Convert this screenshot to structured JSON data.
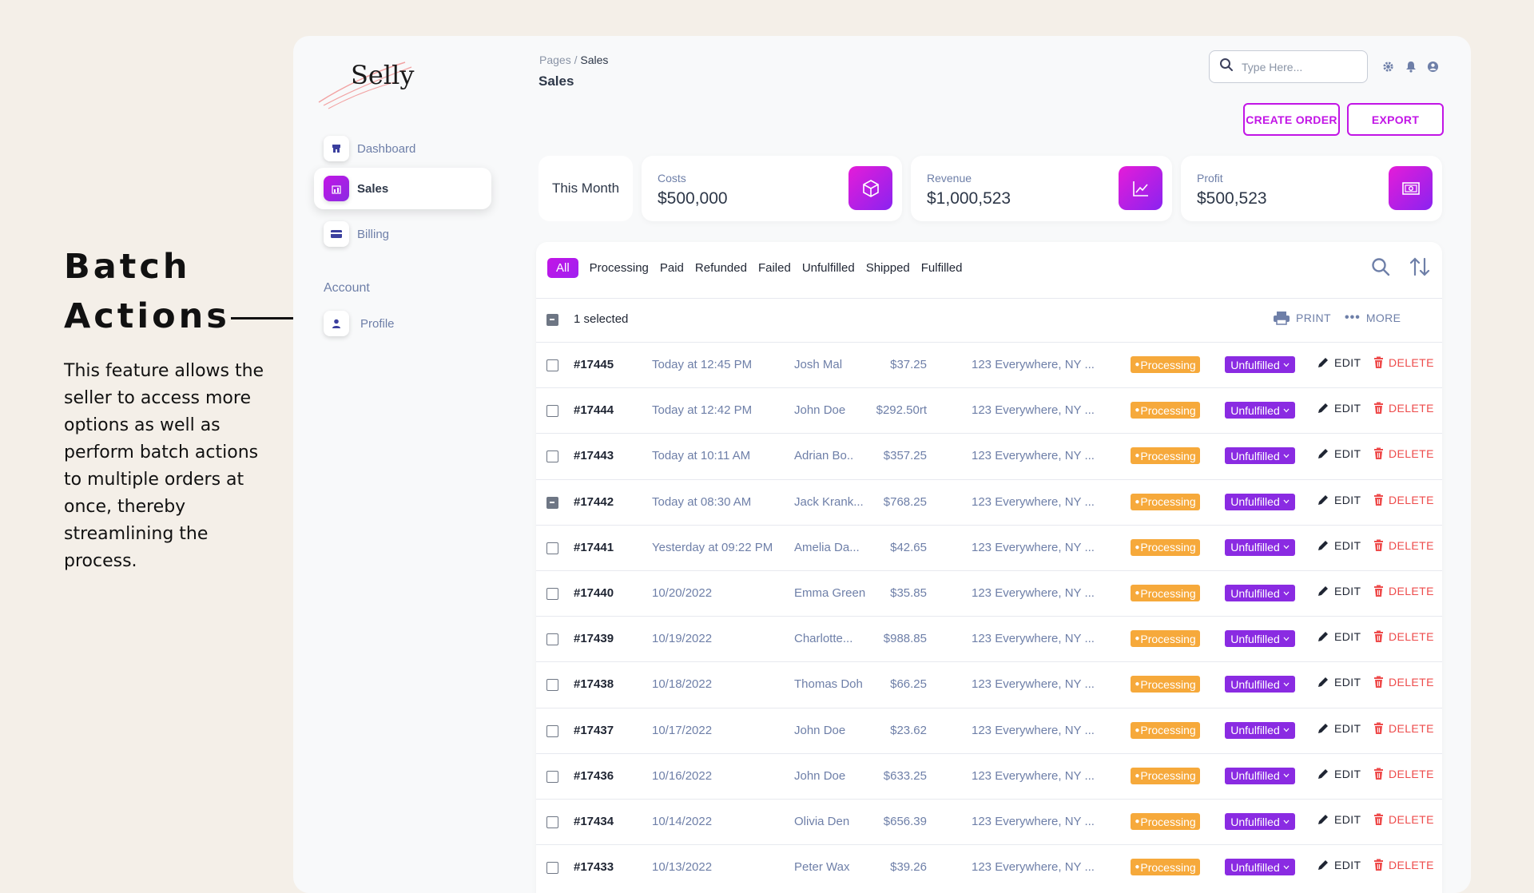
{
  "annotation": {
    "title_line1": "Batch",
    "title_line2": "Actions",
    "description": "This feature allows the seller to access more options as well as perform batch actions to multiple orders at once, thereby streamlining the process."
  },
  "brand": {
    "name": "Selly",
    "accent": "#c215e6",
    "accent2": "#8a2be2"
  },
  "sidebar": {
    "items": [
      {
        "label": "Dashboard",
        "icon": "shop-icon"
      },
      {
        "label": "Sales",
        "icon": "chart-bar-icon"
      },
      {
        "label": "Billing",
        "icon": "credit-card-icon"
      }
    ],
    "account_heading": "Account",
    "account_items": [
      {
        "label": "Profile",
        "icon": "user-icon"
      }
    ]
  },
  "header": {
    "breadcrumb_parent": "Pages",
    "breadcrumb_sep": " / ",
    "breadcrumb_current": "Sales",
    "title": "Sales",
    "search_placeholder": "Type Here...",
    "create_order": "CREATE ORDER",
    "export": "EXPORT"
  },
  "stats": {
    "period": "This Month",
    "costs_label": "Costs",
    "costs_value": "$500,000",
    "revenue_label": "Revenue",
    "revenue_value": "$1,000,523",
    "profit_label": "Profit",
    "profit_value": "$500,523"
  },
  "filters": [
    "All",
    "Processing",
    "Paid",
    "Refunded",
    "Failed",
    "Unfulfilled",
    "Shipped",
    "Fulfilled"
  ],
  "selection": {
    "text": "1 selected",
    "print": "PRINT",
    "more": "MORE"
  },
  "actions": {
    "edit": "EDIT",
    "delete": "DELETE"
  },
  "orders": [
    {
      "id": "#17445",
      "date": "Today at 12:45 PM",
      "customer": "Josh Mal",
      "amount": "$37.25",
      "address": "123 Everywhere, NY ...",
      "payment": "Processing",
      "fulfillment": "Unfulfilled",
      "checked": false
    },
    {
      "id": "#17444",
      "date": "Today at 12:42 PM",
      "customer": "John Doe",
      "amount": "$292.50rt",
      "address": "123 Everywhere, NY ...",
      "payment": "Processing",
      "fulfillment": "Unfulfilled",
      "checked": false
    },
    {
      "id": "#17443",
      "date": "Today at 10:11 AM",
      "customer": "Adrian Bo..",
      "amount": "$357.25",
      "address": "123 Everywhere, NY ...",
      "payment": "Processing",
      "fulfillment": "Unfulfilled",
      "checked": false
    },
    {
      "id": "#17442",
      "date": "Today at 08:30 AM",
      "customer": "Jack Krank...",
      "amount": "$768.25",
      "address": "123 Everywhere, NY ...",
      "payment": "Processing",
      "fulfillment": "Unfulfilled",
      "checked": true
    },
    {
      "id": "#17441",
      "date": "Yesterday at 09:22 PM",
      "customer": "Amelia Da...",
      "amount": "$42.65",
      "address": "123 Everywhere, NY ...",
      "payment": "Processing",
      "fulfillment": "Unfulfilled",
      "checked": false
    },
    {
      "id": "#17440",
      "date": "10/20/2022",
      "customer": "Emma Green",
      "amount": "$35.85",
      "address": "123 Everywhere, NY ...",
      "payment": "Processing",
      "fulfillment": "Unfulfilled",
      "checked": false
    },
    {
      "id": "#17439",
      "date": "10/19/2022",
      "customer": "Charlotte...",
      "amount": "$988.85",
      "address": "123 Everywhere, NY ...",
      "payment": "Processing",
      "fulfillment": "Unfulfilled",
      "checked": false
    },
    {
      "id": "#17438",
      "date": "10/18/2022",
      "customer": "Thomas Doh",
      "amount": "$66.25",
      "address": "123 Everywhere, NY ...",
      "payment": "Processing",
      "fulfillment": "Unfulfilled",
      "checked": false
    },
    {
      "id": "#17437",
      "date": "10/17/2022",
      "customer": "John Doe",
      "amount": "$23.62",
      "address": "123 Everywhere, NY ...",
      "payment": "Processing",
      "fulfillment": "Unfulfilled",
      "checked": false
    },
    {
      "id": "#17436",
      "date": "10/16/2022",
      "customer": "John Doe",
      "amount": "$633.25",
      "address": "123 Everywhere, NY ...",
      "payment": "Processing",
      "fulfillment": "Unfulfilled",
      "checked": false
    },
    {
      "id": "#17434",
      "date": "10/14/2022",
      "customer": "Olivia Den",
      "amount": "$656.39",
      "address": "123 Everywhere, NY ...",
      "payment": "Processing",
      "fulfillment": "Unfulfilled",
      "checked": false
    },
    {
      "id": "#17433",
      "date": "10/13/2022",
      "customer": "Peter Wax",
      "amount": "$39.26",
      "address": "123 Everywhere, NY ...",
      "payment": "Processing",
      "fulfillment": "Unfulfilled",
      "checked": false
    }
  ]
}
